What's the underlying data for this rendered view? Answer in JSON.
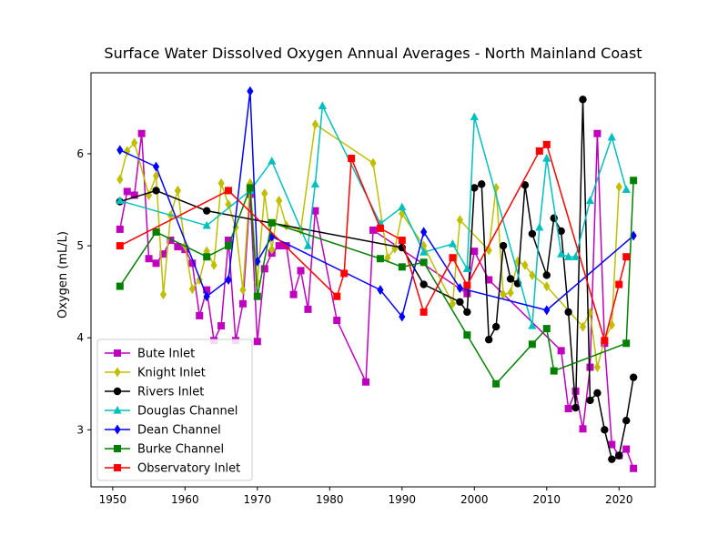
{
  "chart_data": {
    "type": "line",
    "title": "Surface Water Dissolved Oxygen Annual Averages - North Mainland Coast",
    "xlabel": "",
    "ylabel": "Oxygen (mL/L)",
    "xlim": [
      1947,
      2025
    ],
    "ylim": [
      2.38,
      6.88
    ],
    "xticks": [
      1950,
      1960,
      1970,
      1980,
      1990,
      2000,
      2010,
      2020
    ],
    "yticks": [
      3,
      4,
      5,
      6
    ],
    "legend_position": "lower-left",
    "grid": false,
    "series": [
      {
        "name": "Bute Inlet",
        "color": "#bf00bf",
        "marker": "square",
        "x": [
          1951,
          1952,
          1953,
          1954,
          1955,
          1956,
          1957,
          1958,
          1959,
          1960,
          1961,
          1962,
          1963,
          1964,
          1965,
          1966,
          1967,
          1968,
          1969,
          1970,
          1971,
          1972,
          1973,
          1974,
          1975,
          1976,
          1977,
          1978,
          1981,
          1985,
          1986,
          1999,
          2000,
          2002,
          2012,
          2013,
          2014,
          2015,
          2016,
          2017,
          2018,
          2019,
          2020,
          2021,
          2022
        ],
        "y": [
          5.18,
          5.59,
          5.55,
          6.22,
          4.86,
          4.81,
          4.91,
          5.06,
          4.99,
          4.96,
          4.81,
          4.24,
          4.52,
          3.97,
          4.13,
          5.06,
          3.97,
          4.37,
          5.56,
          3.96,
          4.75,
          4.92,
          5.0,
          5.0,
          4.47,
          4.73,
          4.31,
          5.38,
          4.19,
          3.52,
          5.17,
          4.48,
          4.94,
          4.63,
          3.86,
          3.23,
          3.42,
          3.01,
          3.68,
          6.22,
          3.94,
          2.84,
          2.72,
          2.79,
          2.58
        ]
      },
      {
        "name": "Knight Inlet",
        "color": "#bfbf00",
        "marker": "diamond",
        "x": [
          1951,
          1952,
          1953,
          1955,
          1956,
          1957,
          1958,
          1959,
          1960,
          1961,
          1962,
          1963,
          1964,
          1965,
          1966,
          1967,
          1968,
          1969,
          1970,
          1971,
          1972,
          1973,
          1974,
          1976,
          1978,
          1986,
          1988,
          1989,
          1990,
          1993,
          1997,
          1998,
          2002,
          2003,
          2004,
          2005,
          2006,
          2007,
          2008,
          2010,
          2015,
          2016,
          2017,
          2018,
          2019,
          2020
        ],
        "y": [
          5.72,
          6.03,
          6.12,
          5.55,
          5.76,
          4.47,
          5.33,
          5.6,
          5.0,
          4.53,
          4.63,
          4.94,
          4.79,
          5.68,
          5.45,
          5.2,
          4.52,
          5.68,
          4.6,
          5.57,
          4.96,
          5.49,
          5.22,
          5.17,
          6.32,
          5.9,
          4.87,
          4.97,
          5.35,
          5.0,
          4.37,
          5.28,
          4.95,
          5.63,
          4.47,
          4.49,
          4.83,
          4.79,
          4.68,
          4.56,
          4.12,
          4.27,
          3.68,
          3.98,
          4.14,
          5.64
        ]
      },
      {
        "name": "Rivers Inlet",
        "color": "#000000",
        "marker": "circle",
        "x": [
          1951,
          1956,
          1963,
          1990,
          1993,
          1998,
          1999,
          2000,
          2001,
          2002,
          2003,
          2004,
          2005,
          2006,
          2007,
          2008,
          2010,
          2011,
          2012,
          2013,
          2014,
          2015,
          2016,
          2017,
          2018,
          2019,
          2020,
          2021,
          2022
        ],
        "y": [
          5.48,
          5.6,
          5.38,
          4.98,
          4.58,
          4.39,
          4.28,
          5.63,
          5.67,
          3.98,
          4.12,
          5.0,
          4.64,
          4.59,
          5.66,
          5.13,
          4.68,
          5.3,
          5.16,
          4.28,
          3.24,
          6.59,
          3.32,
          3.4,
          3.0,
          2.68,
          2.72,
          3.1,
          3.57
        ]
      },
      {
        "name": "Douglas Channel",
        "color": "#00bfbf",
        "marker": "triangle",
        "x": [
          1951,
          1963,
          1969,
          1972,
          1977,
          1978,
          1979,
          1987,
          1990,
          1993,
          1997,
          1999,
          2000,
          2008,
          2009,
          2010,
          2012,
          2013,
          2014,
          2016,
          2019,
          2021
        ],
        "y": [
          5.49,
          5.22,
          5.6,
          5.92,
          5.0,
          5.67,
          6.52,
          5.24,
          5.42,
          4.93,
          5.02,
          4.75,
          6.4,
          4.13,
          5.2,
          5.95,
          4.91,
          4.88,
          4.88,
          5.49,
          6.18,
          5.61
        ]
      },
      {
        "name": "Dean Channel",
        "color": "#0000ff",
        "marker": "diamond",
        "x": [
          1951,
          1956,
          1963,
          1966,
          1969,
          1970,
          1972,
          1987,
          1990,
          1993,
          1998,
          2010,
          2022
        ],
        "y": [
          6.04,
          5.86,
          4.45,
          4.63,
          6.68,
          4.83,
          5.1,
          4.52,
          4.23,
          5.15,
          4.54,
          4.3,
          5.11
        ]
      },
      {
        "name": "Burke Channel",
        "color": "#008000",
        "marker": "square",
        "x": [
          1951,
          1956,
          1963,
          1966,
          1969,
          1970,
          1972,
          1987,
          1990,
          1993,
          1999,
          2003,
          2008,
          2010,
          2011,
          2021,
          2022
        ],
        "y": [
          4.56,
          5.15,
          4.88,
          5.0,
          5.63,
          4.45,
          5.25,
          4.86,
          4.77,
          4.82,
          4.03,
          3.5,
          3.93,
          4.1,
          3.64,
          3.94,
          5.71
        ]
      },
      {
        "name": "Observatory Inlet",
        "color": "#ff0000",
        "marker": "square",
        "x": [
          1951,
          1966,
          1981,
          1982,
          1983,
          1987,
          1990,
          1993,
          1997,
          1999,
          2009,
          2010,
          2018,
          2020,
          2021
        ],
        "y": [
          5.0,
          5.6,
          4.45,
          4.7,
          5.95,
          5.19,
          5.06,
          4.28,
          4.87,
          4.57,
          6.03,
          6.1,
          3.97,
          4.58,
          4.88
        ]
      }
    ]
  }
}
